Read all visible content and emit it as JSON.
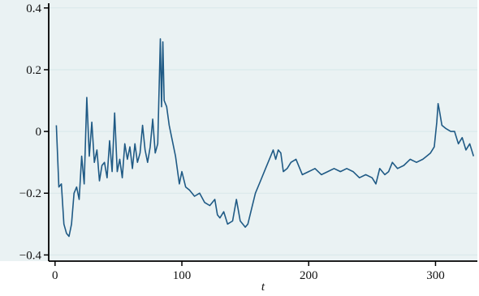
{
  "colors": {
    "background": "#ffffff",
    "plot_background": "#eaf2f3",
    "gridline": "#d7e8ea",
    "axis": "#000000",
    "series": "#1f5a85"
  },
  "chart_data": {
    "type": "line",
    "title": "",
    "xlabel": "t",
    "ylabel": "",
    "xlim": [
      -5,
      333
    ],
    "ylim": [
      -0.42,
      0.41
    ],
    "xticks": [
      0,
      100,
      200,
      300
    ],
    "xtick_labels": [
      "0",
      "100",
      "200",
      "300"
    ],
    "yticks": [
      -0.4,
      -0.2,
      0,
      0.2,
      0.4
    ],
    "ytick_labels": [
      "−0.4",
      "−0.2",
      "0",
      "0.2",
      "0.4"
    ],
    "grid": true,
    "legend": "none",
    "series": [
      {
        "x": [
          1,
          3,
          5,
          7,
          9,
          11,
          13,
          15,
          17,
          19,
          21,
          23,
          25,
          27,
          29,
          31,
          33,
          35,
          37,
          39,
          41,
          43,
          45,
          47,
          49,
          51,
          53,
          55,
          57,
          59,
          61,
          63,
          65,
          67,
          69,
          71,
          73,
          75,
          77,
          79,
          81,
          83,
          84,
          85,
          86,
          88,
          90,
          92,
          95,
          98,
          100,
          103,
          106,
          110,
          114,
          118,
          122,
          126,
          128,
          130,
          133,
          136,
          140,
          143,
          146,
          148,
          150,
          152,
          155,
          158,
          162,
          166,
          170,
          172,
          174,
          176,
          178,
          180,
          183,
          186,
          190,
          195,
          200,
          205,
          210,
          215,
          220,
          225,
          230,
          235,
          240,
          245,
          250,
          253,
          256,
          260,
          263,
          266,
          270,
          275,
          280,
          285,
          290,
          293,
          296,
          299,
          301,
          302,
          303,
          305,
          308,
          312,
          315,
          318,
          321,
          324,
          327,
          330
        ],
        "y": [
          0.02,
          -0.18,
          -0.17,
          -0.3,
          -0.33,
          -0.34,
          -0.3,
          -0.2,
          -0.18,
          -0.22,
          -0.08,
          -0.17,
          0.11,
          -0.08,
          0.03,
          -0.1,
          -0.06,
          -0.16,
          -0.11,
          -0.1,
          -0.15,
          -0.03,
          -0.13,
          0.06,
          -0.13,
          -0.09,
          -0.15,
          -0.04,
          -0.09,
          -0.05,
          -0.12,
          -0.04,
          -0.1,
          -0.07,
          0.02,
          -0.06,
          -0.1,
          -0.05,
          0.04,
          -0.07,
          -0.04,
          0.3,
          0.08,
          0.29,
          0.1,
          0.08,
          0.02,
          -0.02,
          -0.08,
          -0.17,
          -0.13,
          -0.18,
          -0.19,
          -0.21,
          -0.2,
          -0.23,
          -0.24,
          -0.22,
          -0.27,
          -0.28,
          -0.26,
          -0.3,
          -0.29,
          -0.22,
          -0.29,
          -0.3,
          -0.31,
          -0.3,
          -0.25,
          -0.2,
          -0.16,
          -0.12,
          -0.08,
          -0.06,
          -0.09,
          -0.06,
          -0.07,
          -0.13,
          -0.12,
          -0.1,
          -0.09,
          -0.14,
          -0.13,
          -0.12,
          -0.14,
          -0.13,
          -0.12,
          -0.13,
          -0.12,
          -0.13,
          -0.15,
          -0.14,
          -0.15,
          -0.17,
          -0.12,
          -0.14,
          -0.13,
          -0.1,
          -0.12,
          -0.11,
          -0.09,
          -0.1,
          -0.09,
          -0.08,
          -0.07,
          -0.05,
          0.03,
          0.09,
          0.07,
          0.02,
          0.01,
          0.0,
          0.0,
          -0.04,
          -0.02,
          -0.06,
          -0.04,
          -0.08
        ]
      }
    ]
  }
}
